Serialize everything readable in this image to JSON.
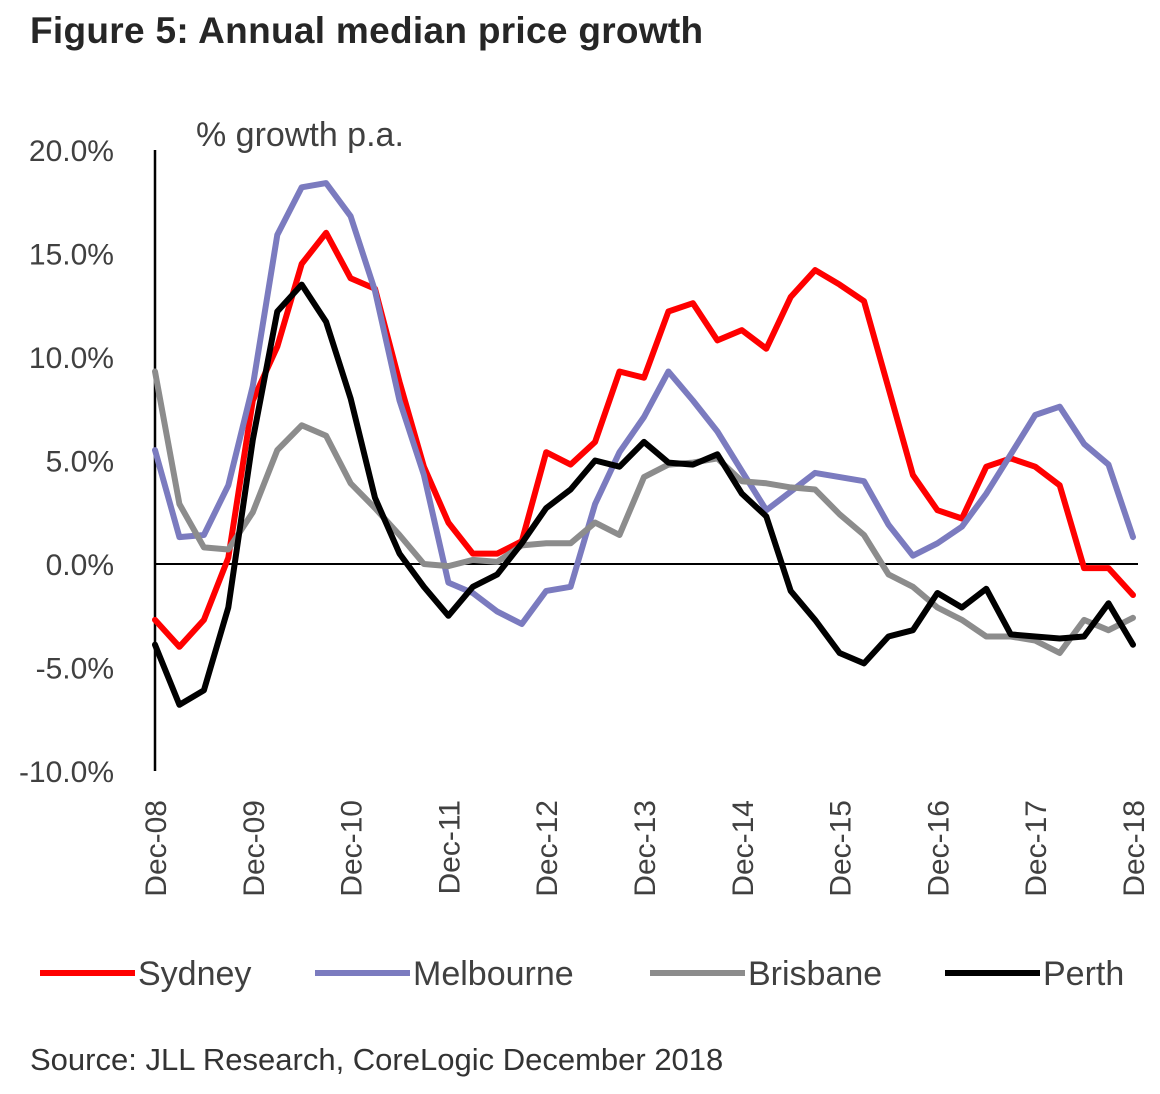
{
  "title": "Figure 5: Annual median price growth",
  "source": "Source:  JLL Research, CoreLogic  December 2018",
  "chart_data": {
    "type": "line",
    "title": "Figure 5: Annual median price growth",
    "ylabel": "% growth p.a.",
    "xlabel": "",
    "ylim": [
      -10,
      20
    ],
    "yticks": [
      "20.0%",
      "15.0%",
      "10.0%",
      "5.0%",
      "0.0%",
      "-5.0%",
      "-10.0%"
    ],
    "ytick_values": [
      20,
      15,
      10,
      5,
      0,
      -5,
      -10
    ],
    "xticks": [
      "Dec-08",
      "Dec-09",
      "Dec-10",
      "Dec-11",
      "Dec-12",
      "Dec-13",
      "Dec-14",
      "Dec-15",
      "Dec-16",
      "Dec-17",
      "Dec-18"
    ],
    "x_frequency": "quarterly, Dec-08 to Dec-18",
    "grid": false,
    "legend": "bottom",
    "series": [
      {
        "name": "Sydney",
        "color": "#ff0000",
        "values": [
          -2.7,
          -4.0,
          -2.7,
          0.3,
          7.9,
          10.5,
          14.5,
          16.0,
          13.8,
          13.3,
          8.8,
          4.7,
          2.0,
          0.5,
          0.5,
          1.1,
          5.4,
          4.8,
          5.9,
          9.3,
          9.0,
          12.2,
          12.6,
          10.8,
          11.3,
          10.4,
          12.9,
          14.2,
          13.5,
          12.7,
          8.5,
          4.3,
          2.6,
          2.2,
          4.7,
          5.1,
          4.7,
          3.8,
          -0.2,
          -0.2,
          -1.5
        ]
      },
      {
        "name": "Melbourne",
        "color": "#7b7bbf",
        "values": [
          5.5,
          1.3,
          1.4,
          3.8,
          8.6,
          15.9,
          18.2,
          18.4,
          16.8,
          13.2,
          7.9,
          4.3,
          -0.9,
          -1.4,
          -2.3,
          -2.9,
          -1.3,
          -1.1,
          2.9,
          5.4,
          7.1,
          9.3,
          7.9,
          6.4,
          4.5,
          2.6,
          3.5,
          4.4,
          4.2,
          4.0,
          1.9,
          0.4,
          1.0,
          1.8,
          3.4,
          5.3,
          7.2,
          7.6,
          5.8,
          4.8,
          1.3
        ]
      },
      {
        "name": "Brisbane",
        "color": "#8c8c8c",
        "values": [
          9.3,
          2.9,
          0.8,
          0.7,
          2.5,
          5.5,
          6.7,
          6.2,
          3.9,
          2.7,
          1.4,
          0.0,
          -0.1,
          0.2,
          0.1,
          0.9,
          1.0,
          1.0,
          2.0,
          1.4,
          4.2,
          4.8,
          4.9,
          5.1,
          4.0,
          3.9,
          3.7,
          3.6,
          2.4,
          1.4,
          -0.5,
          -1.1,
          -2.1,
          -2.7,
          -3.5,
          -3.5,
          -3.7,
          -4.3,
          -2.7,
          -3.2,
          -2.6
        ]
      },
      {
        "name": "Perth",
        "color": "#000000",
        "values": [
          -3.9,
          -6.8,
          -6.1,
          -2.1,
          6.0,
          12.2,
          13.5,
          11.7,
          8.0,
          3.2,
          0.5,
          -1.1,
          -2.5,
          -1.1,
          -0.5,
          1.0,
          2.7,
          3.6,
          5.0,
          4.7,
          5.9,
          4.9,
          4.8,
          5.3,
          3.4,
          2.3,
          -1.3,
          -2.7,
          -4.3,
          -4.8,
          -3.5,
          -3.2,
          -1.4,
          -2.1,
          -1.2,
          -3.4,
          -3.5,
          -3.6,
          -3.5,
          -1.9,
          -3.9
        ]
      }
    ]
  }
}
